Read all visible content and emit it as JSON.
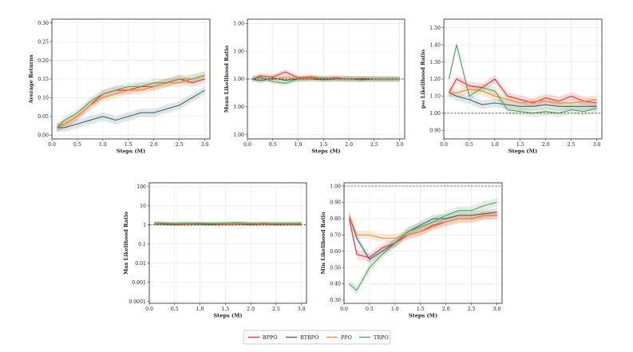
{
  "legend": {
    "entries": [
      {
        "name": "BPPO",
        "color": "#e8323c"
      },
      {
        "name": "BTRPO",
        "color": "#3f6b6b"
      },
      {
        "name": "PPO",
        "color": "#f28a30"
      },
      {
        "name": "TRPO",
        "color": "#5aa25a"
      }
    ]
  },
  "chart_data": [
    {
      "id": "avg-returns",
      "type": "line",
      "title": "",
      "xlabel": "Steps (M)",
      "ylabel": "Average Returns",
      "xlim": [
        0,
        3.1
      ],
      "ylim": [
        -0.01,
        0.31
      ],
      "xticks": [
        "0.0",
        "0.5",
        "1.0",
        "1.5",
        "2.0",
        "2.5",
        "3.0"
      ],
      "yticks": [
        "0.00",
        "0.05",
        "0.10",
        "0.15",
        "0.20",
        "0.25",
        "0.30"
      ],
      "x": [
        0.1,
        0.25,
        0.5,
        0.75,
        1.0,
        1.25,
        1.5,
        1.75,
        2.0,
        2.25,
        2.5,
        2.75,
        3.0
      ],
      "series": [
        {
          "name": "BPPO",
          "values": [
            0.02,
            0.03,
            0.05,
            0.08,
            0.11,
            0.12,
            0.12,
            0.13,
            0.13,
            0.14,
            0.15,
            0.14,
            0.15
          ]
        },
        {
          "name": "BTRPO",
          "values": [
            0.02,
            0.02,
            0.03,
            0.04,
            0.05,
            0.04,
            0.05,
            0.06,
            0.06,
            0.07,
            0.08,
            0.1,
            0.12
          ]
        },
        {
          "name": "PPO",
          "values": [
            0.02,
            0.03,
            0.05,
            0.08,
            0.1,
            0.11,
            0.12,
            0.12,
            0.13,
            0.14,
            0.14,
            0.15,
            0.16
          ]
        },
        {
          "name": "TRPO",
          "values": [
            0.02,
            0.04,
            0.06,
            0.09,
            0.11,
            0.12,
            0.13,
            0.13,
            0.14,
            0.14,
            0.15,
            0.15,
            0.16
          ]
        }
      ]
    },
    {
      "id": "mean-lr",
      "type": "line",
      "title": "",
      "xlabel": "Steps (M)",
      "ylabel": "Mean Likelihood Ratio",
      "scale": "log",
      "xlim": [
        0,
        3.1
      ],
      "ylim_exp": [
        -2.15,
        2.15
      ],
      "xticks": [
        "0.0",
        "0.5",
        "1.0",
        "1.5",
        "2.0",
        "2.5",
        "3.0"
      ],
      "yticks": [
        "0.01",
        "0.10",
        "1.00",
        "10.00",
        "100.00"
      ],
      "ytick_labels_shown": [
        "1.00",
        "1.00",
        "1.00",
        "1.00",
        "1.00"
      ],
      "reference_line": 1.0,
      "x": [
        0.1,
        0.25,
        0.5,
        0.75,
        1.0,
        1.25,
        1.5,
        1.75,
        2.0,
        2.25,
        2.5,
        2.75,
        3.0
      ],
      "series": [
        {
          "name": "BPPO",
          "values": [
            1.0,
            1.3,
            1.2,
            1.8,
            1.1,
            1.2,
            1.0,
            1.1,
            1.0,
            1.05,
            1.0,
            1.0,
            1.0
          ]
        },
        {
          "name": "BTRPO",
          "values": [
            1.0,
            0.85,
            1.1,
            0.9,
            1.0,
            1.0,
            0.95,
            1.0,
            1.0,
            0.95,
            1.0,
            1.0,
            1.0
          ]
        },
        {
          "name": "PPO",
          "values": [
            1.0,
            1.1,
            0.95,
            1.2,
            1.0,
            1.1,
            1.0,
            1.0,
            1.05,
            1.0,
            1.0,
            1.0,
            1.0
          ]
        },
        {
          "name": "TRPO",
          "values": [
            1.0,
            1.2,
            0.8,
            0.7,
            1.0,
            1.0,
            1.1,
            1.0,
            1.0,
            1.0,
            1.0,
            1.0,
            1.0
          ]
        }
      ]
    },
    {
      "id": "p90-lr",
      "type": "line",
      "title": "",
      "xlabel": "Steps (M)",
      "ylabel": "p₉₀ Likelihood Ratio",
      "xlim": [
        0,
        3.1
      ],
      "ylim": [
        0.85,
        1.55
      ],
      "xticks": [
        "0.0",
        "0.5",
        "1.0",
        "1.5",
        "2.0",
        "2.5",
        "3.0"
      ],
      "yticks": [
        "0.90",
        "1.00",
        "1.10",
        "1.20",
        "1.30",
        "1.40",
        "1.50"
      ],
      "reference_line": 1.0,
      "x": [
        0.1,
        0.25,
        0.5,
        0.75,
        1.0,
        1.25,
        1.5,
        1.75,
        2.0,
        2.25,
        2.5,
        2.75,
        3.0
      ],
      "series": [
        {
          "name": "BPPO",
          "values": [
            1.12,
            1.2,
            1.16,
            1.15,
            1.2,
            1.1,
            1.08,
            1.06,
            1.09,
            1.07,
            1.1,
            1.07,
            1.06
          ]
        },
        {
          "name": "BTRPO",
          "values": [
            1.12,
            1.1,
            1.08,
            1.05,
            1.06,
            1.05,
            1.04,
            1.04,
            1.05,
            1.04,
            1.04,
            1.04,
            1.04
          ]
        },
        {
          "name": "PPO",
          "values": [
            1.12,
            1.12,
            1.14,
            1.13,
            1.1,
            1.08,
            1.06,
            1.07,
            1.07,
            1.06,
            1.06,
            1.07,
            1.08
          ]
        },
        {
          "name": "TRPO",
          "values": [
            1.2,
            1.4,
            1.1,
            1.15,
            1.13,
            1.02,
            1.01,
            1.0,
            1.01,
            1.0,
            1.02,
            1.01,
            1.03
          ]
        }
      ]
    },
    {
      "id": "max-lr",
      "type": "line",
      "title": "",
      "xlabel": "Steps (M)",
      "ylabel": "Max Likelihood Ratio",
      "scale": "log",
      "xlim": [
        0,
        3.1
      ],
      "ylim_exp": [
        -4.1,
        2.2
      ],
      "xticks": [
        "0.0",
        "0.5",
        "1.0",
        "1.5",
        "2.0",
        "2.5",
        "3.0"
      ],
      "yticks": [
        "0.0001",
        "0.001",
        "0.01",
        "0.1",
        "1",
        "10",
        "100"
      ],
      "reference_line": 1.0,
      "x": [
        0.1,
        0.25,
        0.5,
        0.75,
        1.0,
        1.25,
        1.5,
        1.75,
        2.0,
        2.25,
        2.5,
        2.75,
        3.0
      ],
      "series": [
        {
          "name": "BPPO",
          "values": [
            1.2,
            1.15,
            1.1,
            1.1,
            1.15,
            1.1,
            1.1,
            1.2,
            1.1,
            1.15,
            1.1,
            1.1,
            1.1
          ]
        },
        {
          "name": "BTRPO",
          "values": [
            1.1,
            1.1,
            1.05,
            1.1,
            1.1,
            1.05,
            1.1,
            1.1,
            1.05,
            1.1,
            1.05,
            1.1,
            1.05
          ]
        },
        {
          "name": "PPO",
          "values": [
            1.15,
            1.2,
            1.15,
            1.1,
            1.2,
            1.15,
            1.1,
            1.15,
            1.15,
            1.1,
            1.15,
            1.1,
            1.15
          ]
        },
        {
          "name": "TRPO",
          "values": [
            1.3,
            1.25,
            1.2,
            1.25,
            1.2,
            1.2,
            1.25,
            1.3,
            1.2,
            1.25,
            1.2,
            1.2,
            1.25
          ]
        }
      ]
    },
    {
      "id": "min-lr",
      "type": "line",
      "title": "",
      "xlabel": "Steps (M)",
      "ylabel": "Min Likelihood Ratio",
      "xlim": [
        0,
        3.1
      ],
      "ylim": [
        0.28,
        1.02
      ],
      "xticks": [
        "0.0",
        "0.5",
        "1.0",
        "1.5",
        "2.0",
        "2.5",
        "3.0"
      ],
      "yticks": [
        "0.30",
        "0.40",
        "0.50",
        "0.60",
        "0.70",
        "0.80",
        "0.90",
        "1.00"
      ],
      "reference_line": 1.0,
      "x": [
        0.1,
        0.25,
        0.5,
        0.75,
        1.0,
        1.25,
        1.5,
        1.75,
        2.0,
        2.25,
        2.5,
        2.75,
        3.0
      ],
      "series": [
        {
          "name": "BPPO",
          "values": [
            0.8,
            0.58,
            0.56,
            0.62,
            0.65,
            0.7,
            0.72,
            0.76,
            0.78,
            0.8,
            0.8,
            0.82,
            0.82
          ]
        },
        {
          "name": "BTRPO",
          "values": [
            0.82,
            0.68,
            0.55,
            0.6,
            0.65,
            0.72,
            0.76,
            0.8,
            0.8,
            0.82,
            0.82,
            0.83,
            0.84
          ]
        },
        {
          "name": "PPO",
          "values": [
            0.82,
            0.7,
            0.7,
            0.68,
            0.68,
            0.7,
            0.72,
            0.75,
            0.78,
            0.8,
            0.8,
            0.82,
            0.82
          ]
        },
        {
          "name": "TRPO",
          "values": [
            0.4,
            0.36,
            0.5,
            0.58,
            0.65,
            0.72,
            0.75,
            0.78,
            0.82,
            0.85,
            0.85,
            0.88,
            0.9
          ]
        }
      ]
    }
  ]
}
